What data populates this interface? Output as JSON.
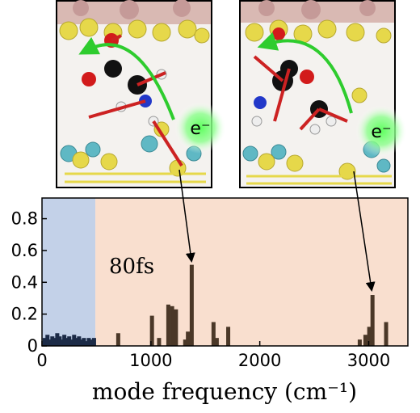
{
  "chart_data": {
    "type": "bar",
    "xlabel": "mode frequency (cm⁻¹)",
    "annotations": [
      "80fs",
      "e⁻",
      "e⁻"
    ],
    "xlim": [
      0,
      3360
    ],
    "ylim": [
      0,
      0.93
    ],
    "xticks": [
      0,
      1000,
      2000,
      3000
    ],
    "yticks": [
      0,
      0.2,
      0.4,
      0.6,
      0.8
    ],
    "regions": [
      {
        "xlim": [
          0,
          490
        ],
        "color": "#c3d1e8"
      },
      {
        "xlim": [
          490,
          3360
        ],
        "color": "#f9dfcf"
      }
    ],
    "series": [
      {
        "color": "#1c2b47",
        "x": [
          25,
          50,
          72,
          95,
          118,
          140,
          162,
          185,
          205,
          228,
          250,
          272,
          295,
          318,
          340,
          362,
          385,
          408,
          430,
          455,
          478
        ],
        "values": [
          0.05,
          0.07,
          0.04,
          0.06,
          0.05,
          0.08,
          0.06,
          0.04,
          0.07,
          0.05,
          0.06,
          0.04,
          0.07,
          0.05,
          0.06,
          0.04,
          0.05,
          0.03,
          0.05,
          0.04,
          0.05
        ]
      },
      {
        "color": "#4b3828",
        "x": [
          700,
          1010,
          1075,
          1160,
          1195,
          1230,
          1315,
          1340,
          1375,
          1575,
          1605,
          1710,
          2918,
          2970,
          3005,
          3035,
          3160
        ],
        "values": [
          0.08,
          0.19,
          0.05,
          0.26,
          0.25,
          0.23,
          0.04,
          0.09,
          0.51,
          0.15,
          0.05,
          0.12,
          0.04,
          0.07,
          0.12,
          0.32,
          0.15
        ]
      }
    ]
  }
}
